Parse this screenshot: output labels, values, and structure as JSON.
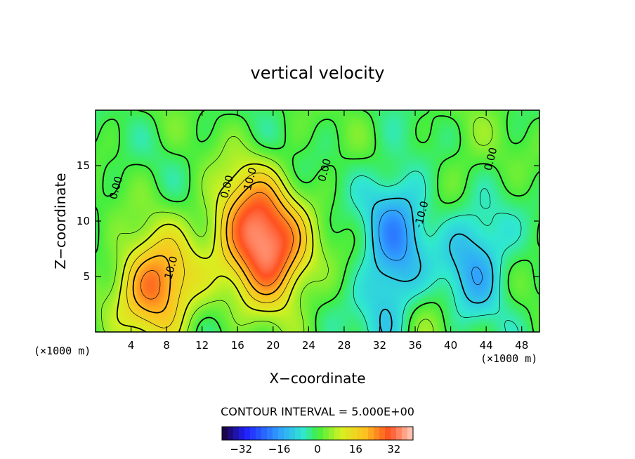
{
  "chart_data": {
    "type": "heatmap",
    "title": "vertical velocity",
    "xlabel": "X−coordinate",
    "ylabel": "Z−coordinate",
    "x_unit": "(×1000 m)",
    "z_unit": "(×1000 m)",
    "xlim": [
      0,
      50
    ],
    "ylim": [
      0,
      20
    ],
    "x_ticks": [
      4,
      8,
      12,
      16,
      20,
      24,
      28,
      32,
      36,
      40,
      44,
      48
    ],
    "y_ticks": [
      5,
      10,
      15
    ],
    "contour_interval_text": "CONTOUR INTERVAL = 5.000E+00",
    "colorbar": {
      "range": [
        -40,
        40
      ],
      "ticks": [
        -32,
        -16,
        0,
        16,
        32
      ],
      "tick_labels": [
        "−32",
        "−16",
        "0",
        "16",
        "32"
      ]
    },
    "contour_labels": [
      {
        "text": "0.00",
        "x": 2.3,
        "y": 13.0
      },
      {
        "text": "10.0",
        "x": 8.5,
        "y": 5.8
      },
      {
        "text": "0.00",
        "x": 14.8,
        "y": 13.1
      },
      {
        "text": "10.0",
        "x": 17.4,
        "y": 13.8
      },
      {
        "text": "0.00",
        "x": 25.8,
        "y": 14.6
      },
      {
        "text": "-10.0",
        "x": 36.7,
        "y": 10.6
      },
      {
        "text": "0.00",
        "x": 44.5,
        "y": 15.6
      }
    ],
    "features": [
      {
        "x": 6.8,
        "z": 4.2,
        "value": 28
      },
      {
        "x": 19.8,
        "z": 6.8,
        "value": 28
      },
      {
        "x": 17.2,
        "z": 10.5,
        "value": 22
      },
      {
        "x": 33.6,
        "z": 3.0,
        "value": -15
      },
      {
        "x": 33.9,
        "z": 10.2,
        "value": -13
      },
      {
        "x": 42.6,
        "z": 6.8,
        "value": -15
      },
      {
        "x": 42.0,
        "z": 14.5,
        "value": 4
      },
      {
        "x": 35.9,
        "z": 1.5,
        "value": 8
      }
    ]
  }
}
